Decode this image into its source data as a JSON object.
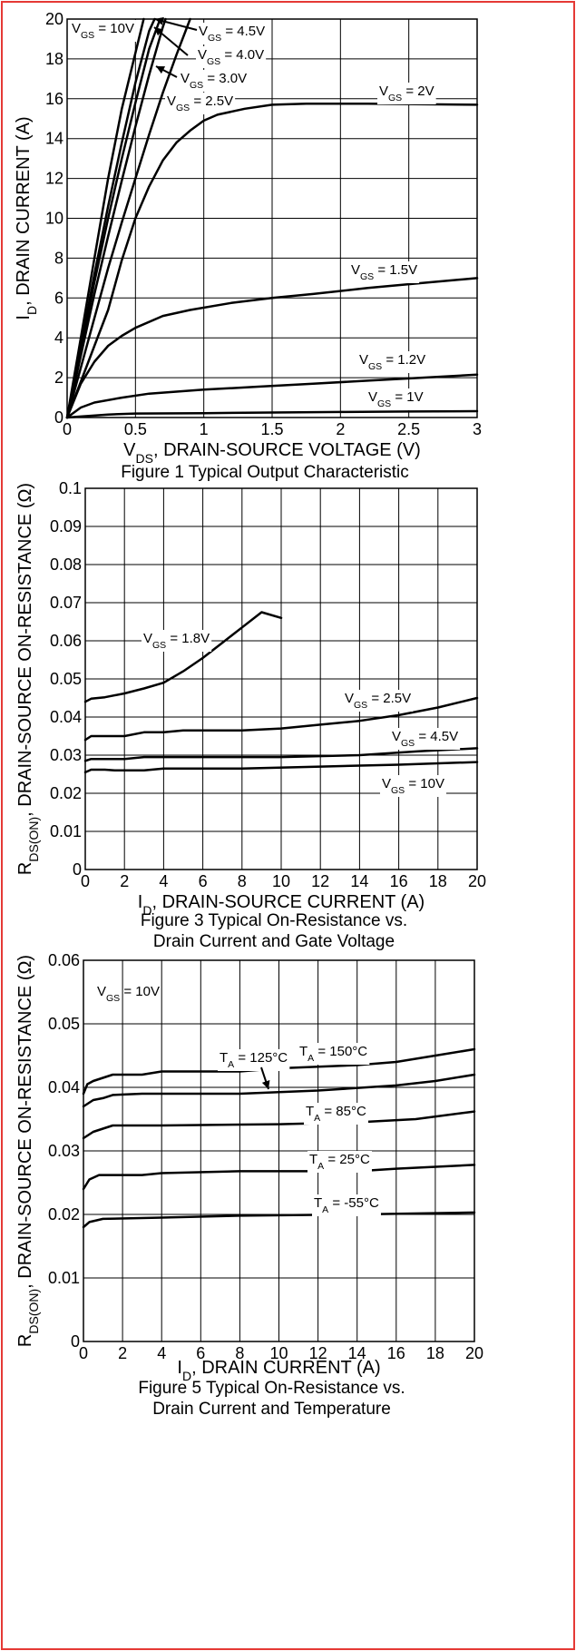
{
  "colors": {
    "frame": "#e53935",
    "ink": "#000000",
    "background": "#ffffff"
  },
  "chart_data": [
    {
      "type": "line",
      "caption": "Figure 1 Typical Output Characteristic",
      "xlabel": {
        "main": "V",
        "sub": "DS",
        "rest": ", DRAIN-SOURCE VOLTAGE (V)"
      },
      "ylabel": {
        "main": "I",
        "sub": "D",
        "rest": ", DRAIN CURRENT (A)"
      },
      "xlim": [
        0,
        3
      ],
      "ylim": [
        0,
        20
      ],
      "xticks": [
        "0",
        "0.5",
        "1",
        "1.5",
        "2",
        "2.5",
        "3"
      ],
      "yticks": [
        "0",
        "2",
        "4",
        "6",
        "8",
        "10",
        "12",
        "14",
        "16",
        "18",
        "20"
      ],
      "grid": true,
      "series": [
        {
          "name": {
            "main": "V",
            "sub": "GS",
            "rest": " = 10V"
          },
          "points": [
            [
              0,
              0
            ],
            [
              0.1,
              4
            ],
            [
              0.2,
              8
            ],
            [
              0.3,
              12
            ],
            [
              0.4,
              15.5
            ],
            [
              0.5,
              18.3
            ],
            [
              0.56,
              20
            ]
          ]
        },
        {
          "name": {
            "main": "V",
            "sub": "GS",
            "rest": " = 4.5V"
          },
          "points": [
            [
              0,
              0
            ],
            [
              0.1,
              3.6
            ],
            [
              0.2,
              7.2
            ],
            [
              0.3,
              10.6
            ],
            [
              0.4,
              13.8
            ],
            [
              0.5,
              16.8
            ],
            [
              0.6,
              19.4
            ],
            [
              0.64,
              20
            ]
          ]
        },
        {
          "name": {
            "main": "V",
            "sub": "GS",
            "rest": " = 4.0V"
          },
          "points": [
            [
              0,
              0
            ],
            [
              0.1,
              3.4
            ],
            [
              0.2,
              6.8
            ],
            [
              0.3,
              10
            ],
            [
              0.4,
              13
            ],
            [
              0.5,
              15.8
            ],
            [
              0.6,
              18.5
            ],
            [
              0.68,
              20
            ]
          ]
        },
        {
          "name": {
            "main": "V",
            "sub": "GS",
            "rest": " = 3.0V"
          },
          "points": [
            [
              0,
              0
            ],
            [
              0.1,
              3.1
            ],
            [
              0.2,
              6.2
            ],
            [
              0.3,
              9.1
            ],
            [
              0.4,
              11.9
            ],
            [
              0.5,
              14.6
            ],
            [
              0.6,
              17.2
            ],
            [
              0.7,
              19.6
            ],
            [
              0.72,
              20
            ]
          ]
        },
        {
          "name": {
            "main": "V",
            "sub": "GS",
            "rest": " = 2.5V"
          },
          "points": [
            [
              0,
              0
            ],
            [
              0.1,
              2.5
            ],
            [
              0.2,
              5
            ],
            [
              0.3,
              7.5
            ],
            [
              0.4,
              9.8
            ],
            [
              0.5,
              12
            ],
            [
              0.6,
              14.2
            ],
            [
              0.7,
              16.3
            ],
            [
              0.8,
              18.2
            ],
            [
              0.9,
              20
            ]
          ]
        },
        {
          "name": {
            "main": "V",
            "sub": "GS",
            "rest": " = 2V"
          },
          "points": [
            [
              0,
              0
            ],
            [
              0.1,
              1.8
            ],
            [
              0.2,
              3.6
            ],
            [
              0.3,
              5.4
            ],
            [
              0.4,
              7.9
            ],
            [
              0.5,
              10
            ],
            [
              0.6,
              11.6
            ],
            [
              0.7,
              12.9
            ],
            [
              0.8,
              13.8
            ],
            [
              0.9,
              14.4
            ],
            [
              1.0,
              14.9
            ],
            [
              1.1,
              15.2
            ],
            [
              1.3,
              15.5
            ],
            [
              1.5,
              15.7
            ],
            [
              1.75,
              15.75
            ],
            [
              2.2,
              15.75
            ],
            [
              3.0,
              15.7
            ]
          ]
        },
        {
          "name": {
            "main": "V",
            "sub": "GS",
            "rest": " = 1.5V"
          },
          "points": [
            [
              0,
              0
            ],
            [
              0.1,
              1.7
            ],
            [
              0.2,
              2.8
            ],
            [
              0.3,
              3.6
            ],
            [
              0.4,
              4.1
            ],
            [
              0.5,
              4.5
            ],
            [
              0.7,
              5.1
            ],
            [
              0.9,
              5.4
            ],
            [
              1.2,
              5.75
            ],
            [
              1.5,
              6.0
            ],
            [
              1.8,
              6.2
            ],
            [
              2.2,
              6.5
            ],
            [
              2.6,
              6.75
            ],
            [
              3.0,
              7.0
            ]
          ]
        },
        {
          "name": {
            "main": "V",
            "sub": "GS",
            "rest": " = 1.2V"
          },
          "points": [
            [
              0,
              0
            ],
            [
              0.1,
              0.5
            ],
            [
              0.2,
              0.75
            ],
            [
              0.4,
              1.0
            ],
            [
              0.6,
              1.2
            ],
            [
              0.8,
              1.3
            ],
            [
              1.0,
              1.4
            ],
            [
              1.4,
              1.55
            ],
            [
              1.8,
              1.7
            ],
            [
              2.2,
              1.85
            ],
            [
              2.6,
              2.0
            ],
            [
              3.0,
              2.15
            ]
          ]
        },
        {
          "name": {
            "main": "V",
            "sub": "GS",
            "rest": " = 1V"
          },
          "points": [
            [
              0,
              0
            ],
            [
              0.1,
              0.05
            ],
            [
              0.3,
              0.15
            ],
            [
              0.5,
              0.2
            ],
            [
              1.0,
              0.22
            ],
            [
              1.5,
              0.25
            ],
            [
              2.0,
              0.28
            ],
            [
              2.5,
              0.3
            ],
            [
              3.0,
              0.32
            ]
          ]
        }
      ]
    },
    {
      "type": "line",
      "caption": [
        "Figure 3 Typical On-Resistance vs.",
        "Drain Current and Gate Voltage"
      ],
      "xlabel": {
        "main": "I",
        "sub": "D",
        "rest": ", DRAIN-SOURCE CURRENT (A)"
      },
      "ylabel": {
        "main": "R",
        "sub": "DS(ON)",
        "rest": ", DRAIN-SOURCE ON-RESISTANCE (Ω)"
      },
      "xlim": [
        0,
        20
      ],
      "ylim": [
        0,
        0.1
      ],
      "xticks": [
        "0",
        "2",
        "4",
        "6",
        "8",
        "10",
        "12",
        "14",
        "16",
        "18",
        "20"
      ],
      "yticks": [
        "0",
        "0.01",
        "0.02",
        "0.03",
        "0.04",
        "0.05",
        "0.06",
        "0.07",
        "0.08",
        "0.09",
        "0.1"
      ],
      "grid": true,
      "series": [
        {
          "name": {
            "main": "V",
            "sub": "GS",
            "rest": " = 1.8V"
          },
          "points": [
            [
              0,
              0.044
            ],
            [
              0.3,
              0.0448
            ],
            [
              1,
              0.0452
            ],
            [
              2,
              0.0462
            ],
            [
              3,
              0.0475
            ],
            [
              4,
              0.049
            ],
            [
              5,
              0.052
            ],
            [
              6,
              0.0555
            ],
            [
              7,
              0.0595
            ],
            [
              8,
              0.0635
            ],
            [
              9,
              0.0675
            ],
            [
              10,
              0.066
            ]
          ]
        },
        {
          "name": {
            "main": "V",
            "sub": "GS",
            "rest": " = 2.5V"
          },
          "points": [
            [
              0,
              0.034
            ],
            [
              0.3,
              0.035
            ],
            [
              2,
              0.035
            ],
            [
              3,
              0.036
            ],
            [
              4,
              0.036
            ],
            [
              5,
              0.0365
            ],
            [
              8,
              0.0365
            ],
            [
              10,
              0.037
            ],
            [
              12,
              0.038
            ],
            [
              14,
              0.039
            ],
            [
              16,
              0.0405
            ],
            [
              18,
              0.0425
            ],
            [
              20,
              0.045
            ]
          ]
        },
        {
          "name": {
            "main": "V",
            "sub": "GS",
            "rest": " = 4.5V"
          },
          "points": [
            [
              0,
              0.0285
            ],
            [
              0.3,
              0.029
            ],
            [
              2,
              0.029
            ],
            [
              3,
              0.0295
            ],
            [
              6,
              0.0295
            ],
            [
              10,
              0.0295
            ],
            [
              14,
              0.03
            ],
            [
              17,
              0.031
            ],
            [
              20,
              0.0318
            ]
          ]
        },
        {
          "name": {
            "main": "V",
            "sub": "GS",
            "rest": " = 10V"
          },
          "points": [
            [
              0,
              0.0255
            ],
            [
              0.3,
              0.0262
            ],
            [
              1,
              0.0262
            ],
            [
              1.5,
              0.026
            ],
            [
              3,
              0.026
            ],
            [
              4,
              0.0265
            ],
            [
              8,
              0.0265
            ],
            [
              12,
              0.027
            ],
            [
              16,
              0.0275
            ],
            [
              20,
              0.0282
            ]
          ]
        }
      ]
    },
    {
      "type": "line",
      "caption": [
        "Figure 5 Typical On-Resistance vs.",
        "Drain Current and Temperature"
      ],
      "xlabel": {
        "main": "I",
        "sub": "D",
        "rest": ", DRAIN CURRENT (A)"
      },
      "ylabel": {
        "main": "R",
        "sub": "DS(ON)",
        "rest": ", DRAIN-SOURCE ON-RESISTANCE (Ω)"
      },
      "xlim": [
        0,
        20
      ],
      "ylim": [
        0,
        0.06
      ],
      "xticks": [
        "0",
        "2",
        "4",
        "6",
        "8",
        "10",
        "12",
        "14",
        "16",
        "18",
        "20"
      ],
      "yticks": [
        "0",
        "0.01",
        "0.02",
        "0.03",
        "0.04",
        "0.05",
        "0.06"
      ],
      "grid": true,
      "note": {
        "main": "V",
        "sub": "GS",
        "rest": " = 10V"
      },
      "series": [
        {
          "name": {
            "main": "T",
            "sub": "A",
            "rest": " = 150°C"
          },
          "points": [
            [
              0,
              0.039
            ],
            [
              0.2,
              0.0405
            ],
            [
              0.5,
              0.041
            ],
            [
              1,
              0.0415
            ],
            [
              1.5,
              0.042
            ],
            [
              3,
              0.042
            ],
            [
              4,
              0.0425
            ],
            [
              8,
              0.0425
            ],
            [
              10,
              0.043
            ],
            [
              14,
              0.0435
            ],
            [
              16,
              0.044
            ],
            [
              18,
              0.045
            ],
            [
              20,
              0.046
            ]
          ]
        },
        {
          "name": {
            "main": "T",
            "sub": "A",
            "rest": " = 125°C"
          },
          "points": [
            [
              0,
              0.037
            ],
            [
              0.5,
              0.038
            ],
            [
              1,
              0.0383
            ],
            [
              1.5,
              0.0388
            ],
            [
              3,
              0.039
            ],
            [
              8,
              0.039
            ],
            [
              12,
              0.0395
            ],
            [
              16,
              0.0403
            ],
            [
              18,
              0.041
            ],
            [
              20,
              0.042
            ]
          ]
        },
        {
          "name": {
            "main": "T",
            "sub": "A",
            "rest": " = 85°C"
          },
          "points": [
            [
              0,
              0.032
            ],
            [
              0.5,
              0.033
            ],
            [
              1,
              0.0335
            ],
            [
              1.5,
              0.034
            ],
            [
              4,
              0.034
            ],
            [
              10,
              0.0342
            ],
            [
              14,
              0.0345
            ],
            [
              17,
              0.035
            ],
            [
              20,
              0.0362
            ]
          ]
        },
        {
          "name": {
            "main": "T",
            "sub": "A",
            "rest": " = 25°C"
          },
          "points": [
            [
              0,
              0.024
            ],
            [
              0.3,
              0.0255
            ],
            [
              0.8,
              0.0262
            ],
            [
              3,
              0.0262
            ],
            [
              4,
              0.0265
            ],
            [
              8,
              0.0268
            ],
            [
              14,
              0.0268
            ],
            [
              16,
              0.0272
            ],
            [
              20,
              0.0278
            ]
          ]
        },
        {
          "name": {
            "main": "T",
            "sub": "A",
            "rest": " = -55°C"
          },
          "points": [
            [
              0,
              0.018
            ],
            [
              0.3,
              0.0188
            ],
            [
              1,
              0.0193
            ],
            [
              4,
              0.0195
            ],
            [
              8,
              0.0198
            ],
            [
              14,
              0.02
            ],
            [
              20,
              0.0203
            ]
          ]
        }
      ]
    }
  ]
}
